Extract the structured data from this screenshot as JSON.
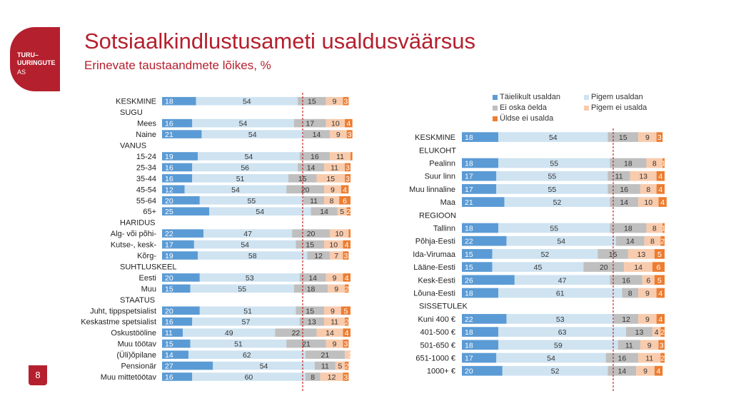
{
  "header": {
    "logo_text": "TURU–\nUURINGUTE",
    "logo_sub": "AS",
    "title": "Sotsiaalkindlustusameti usaldusväärsus",
    "subtitle": "Erinevate taustaandmete lõikes, %",
    "page_number": "8"
  },
  "colors": {
    "series": [
      "#5b9bd5",
      "#cfe3f1",
      "#bfbfbf",
      "#f8cbad",
      "#ed7d31"
    ],
    "accent": "#b5202e",
    "divider": "#c00000"
  },
  "chart_data": [
    {
      "type": "bar",
      "orientation": "horizontal",
      "stacked": true,
      "series": [
        {
          "name": "Täielikult usaldan",
          "values": [
            18,
            null,
            16,
            21,
            null,
            19,
            16,
            16,
            12,
            20,
            25,
            null,
            22,
            17,
            19,
            null,
            20,
            15,
            null,
            20,
            16,
            11,
            15,
            14,
            27,
            16
          ]
        },
        {
          "name": "Pigem usaldan",
          "values": [
            54,
            null,
            54,
            54,
            null,
            54,
            56,
            51,
            54,
            55,
            54,
            null,
            47,
            54,
            58,
            null,
            53,
            55,
            null,
            51,
            57,
            49,
            51,
            62,
            54,
            60
          ]
        },
        {
          "name": "Ei oska öelda",
          "values": [
            15,
            null,
            17,
            14,
            null,
            16,
            14,
            15,
            20,
            11,
            14,
            null,
            20,
            15,
            12,
            null,
            14,
            18,
            null,
            15,
            13,
            22,
            21,
            21,
            11,
            8
          ]
        },
        {
          "name": "Pigem ei usalda",
          "values": [
            9,
            null,
            10,
            9,
            null,
            11,
            11,
            15,
            9,
            8,
            5,
            null,
            10,
            10,
            7,
            null,
            9,
            9,
            null,
            9,
            11,
            14,
            9,
            3,
            5,
            12
          ]
        },
        {
          "name": "Üldse ei usalda",
          "values": [
            3,
            null,
            4,
            3,
            null,
            1,
            3,
            3,
            4,
            6,
            2,
            null,
            1,
            4,
            3,
            null,
            4,
            2,
            null,
            5,
            2,
            4,
            3,
            0,
            2,
            3
          ]
        }
      ],
      "categories": [
        "KESKMINE",
        "SUGU",
        "Mees",
        "Naine",
        "VANUS",
        "15-24",
        "25-34",
        "35-44",
        "45-54",
        "55-64",
        "65+",
        "HARIDUS",
        "Alg- või põhi-",
        "Kutse-, kesk-",
        "Kõrg-",
        "SUHTLUSKEEL",
        "Eesti",
        "Muu",
        "STAATUS",
        "Juht, tippspetsialist",
        "Keskastme spetsialist",
        "Oskustööline",
        "Muu töötav",
        "(Üli)õpilane",
        "Pensionär",
        "Muu mittetöötav"
      ],
      "labels": [
        [
          "18",
          "54",
          "15",
          "9",
          "3"
        ],
        null,
        [
          "16",
          "54",
          "17",
          "10",
          "4"
        ],
        [
          "21",
          "54",
          "14",
          "9",
          "3"
        ],
        null,
        [
          "19",
          "54",
          "16",
          "11",
          ""
        ],
        [
          "16",
          "56",
          "14",
          "11",
          "3"
        ],
        [
          "16",
          "51",
          "15",
          "15",
          "3"
        ],
        [
          "12",
          "54",
          "20",
          "9",
          "4"
        ],
        [
          "20",
          "55",
          "11",
          "8",
          "6"
        ],
        [
          "25",
          "54",
          "14",
          "5",
          "2"
        ],
        null,
        [
          "22",
          "47",
          "20",
          "10",
          ""
        ],
        [
          "17",
          "54",
          "15",
          "10",
          "4"
        ],
        [
          "19",
          "58",
          "12",
          "7",
          "3"
        ],
        null,
        [
          "20",
          "53",
          "14",
          "9",
          "4"
        ],
        [
          "15",
          "55",
          "18",
          "9",
          "2"
        ],
        null,
        [
          "20",
          "51",
          "15",
          "9",
          "5"
        ],
        [
          "16",
          "57",
          "13",
          "11",
          "2"
        ],
        [
          "11",
          "49",
          "22",
          "14",
          "4"
        ],
        [
          "15",
          "51",
          "21",
          "9",
          "3"
        ],
        [
          "14",
          "62",
          "21",
          "",
          "3"
        ],
        [
          "27",
          "54",
          "11",
          "5",
          "2"
        ],
        [
          "16",
          "60",
          "8",
          "12",
          "3"
        ]
      ]
    },
    {
      "type": "bar",
      "orientation": "horizontal",
      "stacked": true,
      "series": [
        {
          "name": "Täielikult usaldan",
          "values": [
            18,
            null,
            18,
            17,
            17,
            21,
            null,
            18,
            22,
            15,
            15,
            26,
            18,
            null,
            22,
            18,
            18,
            17,
            20
          ]
        },
        {
          "name": "Pigem usaldan",
          "values": [
            54,
            null,
            55,
            55,
            55,
            52,
            null,
            55,
            54,
            52,
            45,
            47,
            61,
            null,
            53,
            63,
            59,
            54,
            52
          ]
        },
        {
          "name": "Ei oska öelda",
          "values": [
            15,
            null,
            18,
            11,
            16,
            14,
            null,
            18,
            14,
            15,
            20,
            16,
            8,
            null,
            12,
            13,
            11,
            16,
            14
          ]
        },
        {
          "name": "Pigem ei usalda",
          "values": [
            9,
            null,
            8,
            13,
            8,
            10,
            null,
            8,
            8,
            13,
            14,
            6,
            9,
            null,
            9,
            4,
            9,
            11,
            9
          ]
        },
        {
          "name": "Üldse ei usalda",
          "values": [
            3,
            null,
            1,
            4,
            4,
            4,
            null,
            1,
            2,
            5,
            6,
            5,
            4,
            null,
            4,
            2,
            3,
            2,
            4
          ]
        }
      ],
      "categories": [
        "KESKMINE",
        "ELUKOHT",
        "Pealinn",
        "Suur linn",
        "Muu linnaline",
        "Maa",
        "REGIOON",
        "Tallinn",
        "Põhja-Eesti",
        "Ida-Virumaa",
        "Lääne-Eesti",
        "Kesk-Eesti",
        "Lõuna-Eesti",
        "SISSETULEK",
        "Kuni 400 €",
        "401-500 €",
        "501-650 €",
        "651-1000 €",
        "1000+ €"
      ],
      "labels": [
        [
          "18",
          "54",
          "15",
          "9",
          "3"
        ],
        null,
        [
          "18",
          "55",
          "18",
          "8",
          "1"
        ],
        [
          "17",
          "55",
          "11",
          "13",
          "4"
        ],
        [
          "17",
          "55",
          "16",
          "8",
          "4"
        ],
        [
          "21",
          "52",
          "14",
          "10",
          "4"
        ],
        null,
        [
          "18",
          "55",
          "18",
          "8",
          "1"
        ],
        [
          "22",
          "54",
          "14",
          "8",
          "2"
        ],
        [
          "15",
          "52",
          "15",
          "13",
          "5"
        ],
        [
          "15",
          "45",
          "20",
          "14",
          "6"
        ],
        [
          "26",
          "47",
          "16",
          "6",
          "5"
        ],
        [
          "18",
          "61",
          "8",
          "9",
          "4"
        ],
        null,
        [
          "22",
          "53",
          "12",
          "9",
          "4"
        ],
        [
          "18",
          "63",
          "13",
          "4",
          "2"
        ],
        [
          "18",
          "59",
          "11",
          "9",
          "3"
        ],
        [
          "17",
          "54",
          "16",
          "11",
          "2"
        ],
        [
          "20",
          "52",
          "14",
          "9",
          "4"
        ]
      ]
    }
  ]
}
